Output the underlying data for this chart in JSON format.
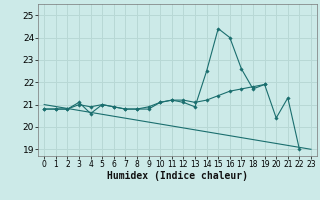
{
  "xlabel": "Humidex (Indice chaleur)",
  "bg_color": "#cceae8",
  "grid_color": "#b8d8d5",
  "line_color": "#1a6e6e",
  "xlim": [
    -0.5,
    23.5
  ],
  "ylim": [
    18.7,
    25.5
  ],
  "xticks": [
    0,
    1,
    2,
    3,
    4,
    5,
    6,
    7,
    8,
    9,
    10,
    11,
    12,
    13,
    14,
    15,
    16,
    17,
    18,
    19,
    20,
    21,
    22,
    23
  ],
  "yticks": [
    19,
    20,
    21,
    22,
    23,
    24,
    25
  ],
  "line1_x": [
    0,
    1,
    2,
    3,
    4,
    5,
    6,
    7,
    8,
    9,
    10,
    11,
    12,
    13,
    14,
    15,
    16,
    17,
    18,
    19,
    20,
    21,
    22
  ],
  "line1_y": [
    20.8,
    20.8,
    20.8,
    21.1,
    20.6,
    21.0,
    20.9,
    20.8,
    20.8,
    20.8,
    21.1,
    21.2,
    21.1,
    20.9,
    22.5,
    24.4,
    24.0,
    22.6,
    21.7,
    21.9,
    20.4,
    21.3,
    19.0
  ],
  "line2_x": [
    0,
    1,
    2,
    3,
    4,
    5,
    6,
    7,
    8,
    9,
    10,
    11,
    12,
    13,
    14,
    15,
    16,
    17,
    18,
    19
  ],
  "line2_y": [
    20.8,
    20.8,
    20.8,
    21.0,
    20.9,
    21.0,
    20.9,
    20.8,
    20.8,
    20.9,
    21.1,
    21.2,
    21.2,
    21.1,
    21.2,
    21.4,
    21.6,
    21.7,
    21.8,
    21.9
  ],
  "line3_x": [
    0,
    23
  ],
  "line3_y": [
    21.0,
    19.0
  ]
}
